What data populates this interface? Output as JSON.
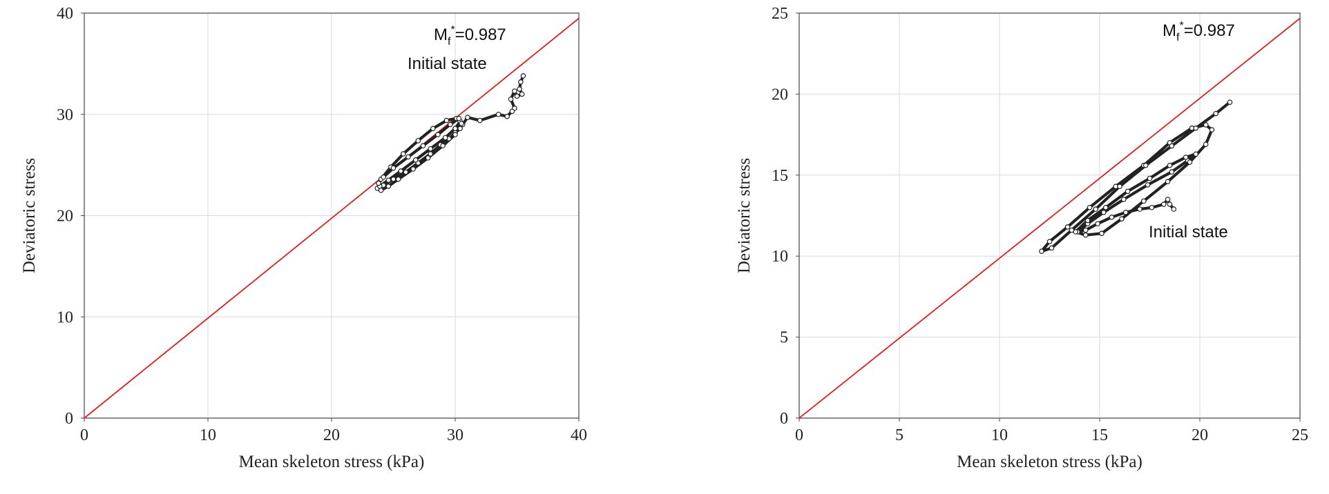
{
  "chart_data": [
    {
      "type": "scatter",
      "xlabel": "Mean skeleton stress (kPa)",
      "ylabel": "Deviatoric stress",
      "xlim": [
        0,
        40
      ],
      "ylim": [
        0,
        40
      ],
      "xticks": [
        0,
        10,
        20,
        30,
        40
      ],
      "yticks": [
        0,
        10,
        20,
        30,
        40
      ],
      "grid": true,
      "failure_line": {
        "slope": 0.987,
        "color": "#e31a1c",
        "label_prefix": "M",
        "label_sub": "f",
        "label_sup": "*",
        "label_value": "=0.987"
      },
      "annotation": "Initial state",
      "stress_path": {
        "color": "#222222",
        "x": [
          35.5,
          35.3,
          35.2,
          35.4,
          35.0,
          34.8,
          34.5,
          34.8,
          34.6,
          34.2,
          33.5,
          32.0,
          31.0,
          30.6,
          30.4,
          30.0,
          29.5,
          28.8,
          28.0,
          27.0,
          26.0,
          25.0,
          24.2,
          23.7,
          23.9,
          24.6,
          25.6,
          26.8,
          28.0,
          29.2,
          30.0,
          30.4,
          30.1,
          29.3,
          28.2,
          27.0,
          25.8,
          24.8,
          24.0,
          23.8,
          24.2,
          25.0,
          26.2,
          27.4,
          28.6,
          29.6,
          30.3,
          30.5,
          30.0,
          29.0,
          27.8,
          26.6,
          25.4,
          24.6,
          24.0
        ],
        "y": [
          33.8,
          33.2,
          32.5,
          32.0,
          31.8,
          32.3,
          31.5,
          30.6,
          30.3,
          29.8,
          30.0,
          29.4,
          29.7,
          29.0,
          28.6,
          28.2,
          27.6,
          27.0,
          26.1,
          25.2,
          24.3,
          23.6,
          23.0,
          22.7,
          22.9,
          23.5,
          24.4,
          25.5,
          26.6,
          27.7,
          28.6,
          29.3,
          29.6,
          29.4,
          28.6,
          27.4,
          26.1,
          24.8,
          23.6,
          23.2,
          23.8,
          24.7,
          25.8,
          26.9,
          28.0,
          29.0,
          29.6,
          29.1,
          28.0,
          26.9,
          25.7,
          24.6,
          23.6,
          22.9,
          22.5
        ]
      }
    },
    {
      "type": "scatter",
      "xlabel": "Mean skeleton stress (kPa)",
      "ylabel": "Deviatoric stress",
      "xlim": [
        0,
        25
      ],
      "ylim": [
        0,
        25
      ],
      "xticks": [
        0,
        5,
        10,
        15,
        20,
        25
      ],
      "yticks": [
        0,
        5,
        10,
        15,
        20,
        25
      ],
      "grid": true,
      "failure_line": {
        "slope": 0.987,
        "color": "#e31a1c",
        "label_prefix": "M",
        "label_sub": "f",
        "label_sup": "*",
        "label_value": "=0.987"
      },
      "annotation": "Initial state",
      "stress_path": {
        "color": "#222222",
        "x": [
          18.7,
          18.5,
          18.4,
          18.2,
          17.6,
          17.0,
          16.3,
          15.6,
          14.9,
          14.3,
          13.9,
          14.4,
          15.2,
          16.2,
          17.4,
          18.6,
          19.4,
          19.8,
          19.3,
          18.5,
          17.5,
          16.4,
          15.3,
          14.4,
          13.8,
          14.3,
          15.1,
          16.1,
          17.2,
          18.4,
          19.5,
          20.3,
          20.6,
          20.3,
          19.6,
          18.5,
          17.2,
          15.8,
          14.5,
          13.4,
          12.5,
          12.1,
          12.6,
          13.6,
          14.8,
          16.0,
          17.3,
          18.6,
          19.8,
          20.8,
          21.5
        ],
        "y": [
          12.9,
          13.2,
          13.5,
          13.2,
          13.0,
          12.9,
          12.7,
          12.4,
          12.0,
          11.6,
          11.5,
          12.0,
          12.7,
          13.5,
          14.4,
          15.2,
          15.9,
          16.3,
          16.1,
          15.6,
          14.8,
          14.0,
          13.0,
          12.2,
          11.5,
          11.3,
          11.4,
          12.3,
          13.4,
          14.6,
          15.8,
          16.9,
          17.8,
          18.1,
          17.9,
          17.0,
          15.6,
          14.3,
          13.0,
          11.8,
          10.9,
          10.3,
          10.5,
          11.6,
          12.9,
          14.3,
          15.6,
          16.8,
          17.9,
          18.8,
          19.5
        ]
      }
    }
  ]
}
